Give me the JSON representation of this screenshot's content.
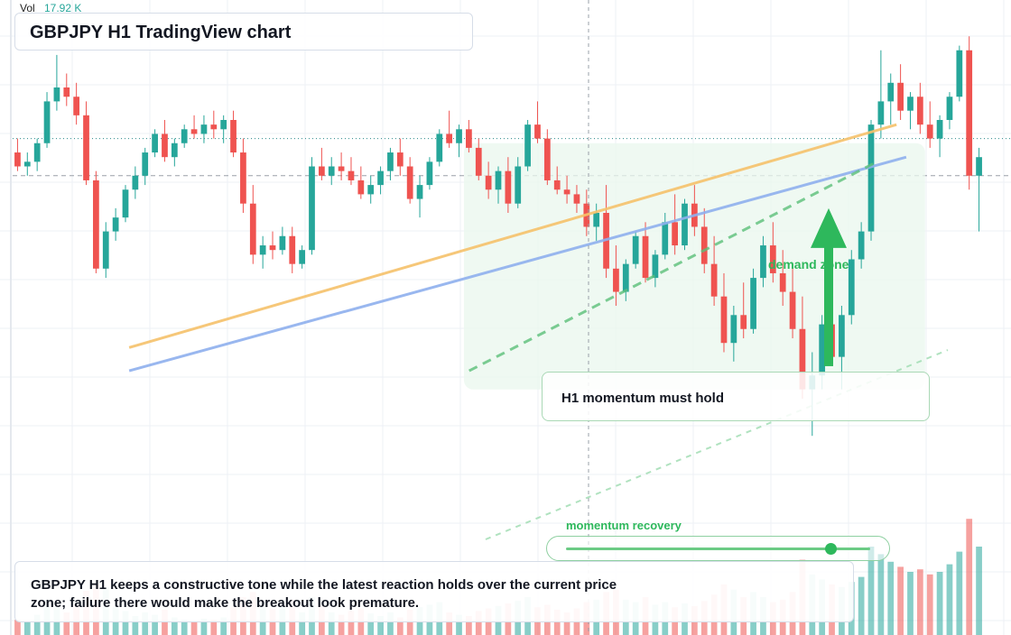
{
  "header": {
    "title": "GBPJPY H1 TradingView chart"
  },
  "volume": {
    "label": "Vol",
    "value": "17.92 K"
  },
  "annotations": {
    "zone_label": "demand zone",
    "momentum_note": "H1 momentum must hold",
    "recovery_label": "momentum recovery",
    "momentum_slider_level": 0.87
  },
  "caption": {
    "text": "GBPJPY H1 keeps a constructive tone while the latest reaction holds over the current price zone; failure there would make the breakout look premature."
  },
  "colors": {
    "bull": "#26a69a",
    "bear": "#ef5350",
    "accent": "#2eb85c",
    "trendline_orange": "#f6c26b",
    "trendline_blue": "#8fb0ee",
    "grid": "#eef1f5"
  },
  "chart_data": {
    "type": "candlestick",
    "ylim": [
      0,
      100
    ],
    "volume_max": 100,
    "reference_levels": [
      {
        "name": "",
        "value": 76
      },
      {
        "name": "",
        "value": 68
      }
    ],
    "trendlines": [
      {
        "color": "orange",
        "from": [
          12,
          31
        ],
        "to": [
          91,
          79
        ]
      },
      {
        "color": "blue",
        "from": [
          12,
          26
        ],
        "to": [
          92,
          72
        ]
      },
      {
        "color": "green-dashed",
        "from": [
          47,
          26
        ],
        "to": [
          89,
          71
        ]
      }
    ],
    "demand_zone": {
      "from_index": 46,
      "to_index": 93,
      "low": 22,
      "high": 75
    },
    "momentum_arrow": {
      "index": 79,
      "from": 27,
      "to": 61
    },
    "candles": [
      {
        "o": 73,
        "h": 76,
        "l": 69,
        "c": 70,
        "v": 12
      },
      {
        "o": 70,
        "h": 73,
        "l": 68,
        "c": 71,
        "v": 10
      },
      {
        "o": 71,
        "h": 76,
        "l": 69,
        "c": 75,
        "v": 16
      },
      {
        "o": 75,
        "h": 86,
        "l": 74,
        "c": 84,
        "v": 28
      },
      {
        "o": 84,
        "h": 94,
        "l": 82,
        "c": 87,
        "v": 22
      },
      {
        "o": 87,
        "h": 90,
        "l": 83,
        "c": 85,
        "v": 18
      },
      {
        "o": 85,
        "h": 88,
        "l": 79,
        "c": 81,
        "v": 24
      },
      {
        "o": 81,
        "h": 84,
        "l": 66,
        "c": 67,
        "v": 35
      },
      {
        "o": 67,
        "h": 69,
        "l": 47,
        "c": 48,
        "v": 40
      },
      {
        "o": 48,
        "h": 58,
        "l": 46,
        "c": 56,
        "v": 38
      },
      {
        "o": 56,
        "h": 61,
        "l": 54,
        "c": 59,
        "v": 22
      },
      {
        "o": 59,
        "h": 66,
        "l": 58,
        "c": 65,
        "v": 19
      },
      {
        "o": 65,
        "h": 70,
        "l": 63,
        "c": 68,
        "v": 15
      },
      {
        "o": 68,
        "h": 74,
        "l": 66,
        "c": 73,
        "v": 18
      },
      {
        "o": 73,
        "h": 78,
        "l": 72,
        "c": 77,
        "v": 16
      },
      {
        "o": 77,
        "h": 80,
        "l": 71,
        "c": 72,
        "v": 20
      },
      {
        "o": 72,
        "h": 76,
        "l": 70,
        "c": 75,
        "v": 14
      },
      {
        "o": 75,
        "h": 79,
        "l": 74,
        "c": 78,
        "v": 12
      },
      {
        "o": 78,
        "h": 81,
        "l": 76,
        "c": 77,
        "v": 11
      },
      {
        "o": 77,
        "h": 81,
        "l": 75,
        "c": 79,
        "v": 13
      },
      {
        "o": 79,
        "h": 82,
        "l": 76,
        "c": 78,
        "v": 12
      },
      {
        "o": 78,
        "h": 81,
        "l": 75,
        "c": 80,
        "v": 14
      },
      {
        "o": 80,
        "h": 82,
        "l": 72,
        "c": 73,
        "v": 22
      },
      {
        "o": 73,
        "h": 76,
        "l": 60,
        "c": 62,
        "v": 30
      },
      {
        "o": 62,
        "h": 66,
        "l": 49,
        "c": 51,
        "v": 34
      },
      {
        "o": 51,
        "h": 55,
        "l": 48,
        "c": 53,
        "v": 26
      },
      {
        "o": 53,
        "h": 56,
        "l": 50,
        "c": 52,
        "v": 21
      },
      {
        "o": 52,
        "h": 57,
        "l": 51,
        "c": 55,
        "v": 23
      },
      {
        "o": 55,
        "h": 57,
        "l": 47,
        "c": 49,
        "v": 28
      },
      {
        "o": 49,
        "h": 53,
        "l": 48,
        "c": 52,
        "v": 18
      }
    ],
    "candle_count_note": "",
    "candles_more": [
      {
        "o": 52,
        "h": 72,
        "l": 51,
        "c": 70,
        "v": 30
      },
      {
        "o": 70,
        "h": 74,
        "l": 67,
        "c": 68,
        "v": 24
      },
      {
        "o": 68,
        "h": 72,
        "l": 66,
        "c": 70,
        "v": 18
      },
      {
        "o": 70,
        "h": 73,
        "l": 67,
        "c": 69,
        "v": 16
      },
      {
        "o": 69,
        "h": 72,
        "l": 66,
        "c": 67,
        "v": 19
      },
      {
        "o": 67,
        "h": 70,
        "l": 63,
        "c": 64,
        "v": 21
      },
      {
        "o": 64,
        "h": 68,
        "l": 62,
        "c": 66,
        "v": 17
      },
      {
        "o": 66,
        "h": 70,
        "l": 64,
        "c": 69,
        "v": 15
      },
      {
        "o": 69,
        "h": 74,
        "l": 67,
        "c": 73,
        "v": 18
      },
      {
        "o": 73,
        "h": 76,
        "l": 68,
        "c": 70,
        "v": 14
      },
      {
        "o": 70,
        "h": 72,
        "l": 62,
        "c": 63,
        "v": 20
      },
      {
        "o": 63,
        "h": 68,
        "l": 59,
        "c": 66,
        "v": 22
      },
      {
        "o": 66,
        "h": 72,
        "l": 65,
        "c": 71,
        "v": 24
      },
      {
        "o": 71,
        "h": 78,
        "l": 70,
        "c": 77,
        "v": 26
      },
      {
        "o": 77,
        "h": 82,
        "l": 74,
        "c": 75,
        "v": 18
      },
      {
        "o": 75,
        "h": 79,
        "l": 72,
        "c": 78,
        "v": 16
      },
      {
        "o": 78,
        "h": 80,
        "l": 73,
        "c": 74,
        "v": 15
      },
      {
        "o": 74,
        "h": 76,
        "l": 67,
        "c": 68,
        "v": 19
      },
      {
        "o": 68,
        "h": 71,
        "l": 63,
        "c": 65,
        "v": 21
      },
      {
        "o": 65,
        "h": 70,
        "l": 62,
        "c": 69,
        "v": 23
      },
      {
        "o": 69,
        "h": 72,
        "l": 60,
        "c": 62,
        "v": 25
      },
      {
        "o": 62,
        "h": 72,
        "l": 61,
        "c": 70,
        "v": 27
      },
      {
        "o": 70,
        "h": 80,
        "l": 69,
        "c": 79,
        "v": 30
      },
      {
        "o": 79,
        "h": 84,
        "l": 75,
        "c": 76,
        "v": 22
      },
      {
        "o": 76,
        "h": 78,
        "l": 66,
        "c": 67,
        "v": 24
      },
      {
        "o": 67,
        "h": 70,
        "l": 64,
        "c": 65,
        "v": 20
      },
      {
        "o": 65,
        "h": 68,
        "l": 62,
        "c": 64,
        "v": 18
      },
      {
        "o": 64,
        "h": 66,
        "l": 60,
        "c": 62,
        "v": 21
      },
      {
        "o": 62,
        "h": 65,
        "l": 55,
        "c": 57,
        "v": 26
      },
      {
        "o": 57,
        "h": 62,
        "l": 54,
        "c": 60,
        "v": 28
      }
    ]
  }
}
